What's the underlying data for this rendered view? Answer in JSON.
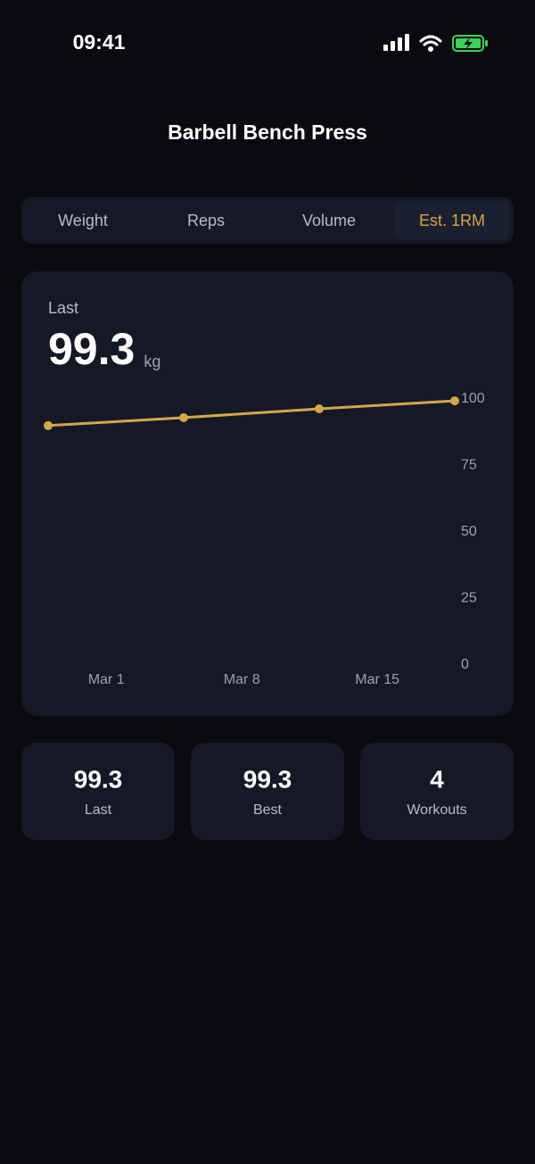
{
  "status_bar": {
    "time": "09:41"
  },
  "header": {
    "title": "Barbell Bench Press"
  },
  "tabs": {
    "items": [
      "Weight",
      "Reps",
      "Volume",
      "Est. 1RM"
    ],
    "active": 3
  },
  "summary": {
    "label": "Last",
    "value": 99.3,
    "unit": "kg"
  },
  "chart_data": {
    "type": "line",
    "x": [
      -2,
      5,
      12,
      19
    ],
    "series": [
      {
        "color": "#d4a64a",
        "values": [
          90,
          93,
          96.3,
          99.3
        ]
      }
    ],
    "xlim": [
      -2,
      19
    ],
    "xticks": [
      {
        "value": 1,
        "label": "Mar 1"
      },
      {
        "value": 8,
        "label": "Mar 8"
      },
      {
        "value": 15,
        "label": "Mar 15"
      }
    ],
    "ylim": [
      0,
      100
    ],
    "yticks": [
      0,
      25,
      50,
      75,
      100
    ],
    "grid": false
  },
  "stats": [
    {
      "value": 99.3,
      "label": "Last"
    },
    {
      "value": 99.3,
      "label": "Best"
    },
    {
      "value": 4,
      "label": "Workouts"
    }
  ]
}
